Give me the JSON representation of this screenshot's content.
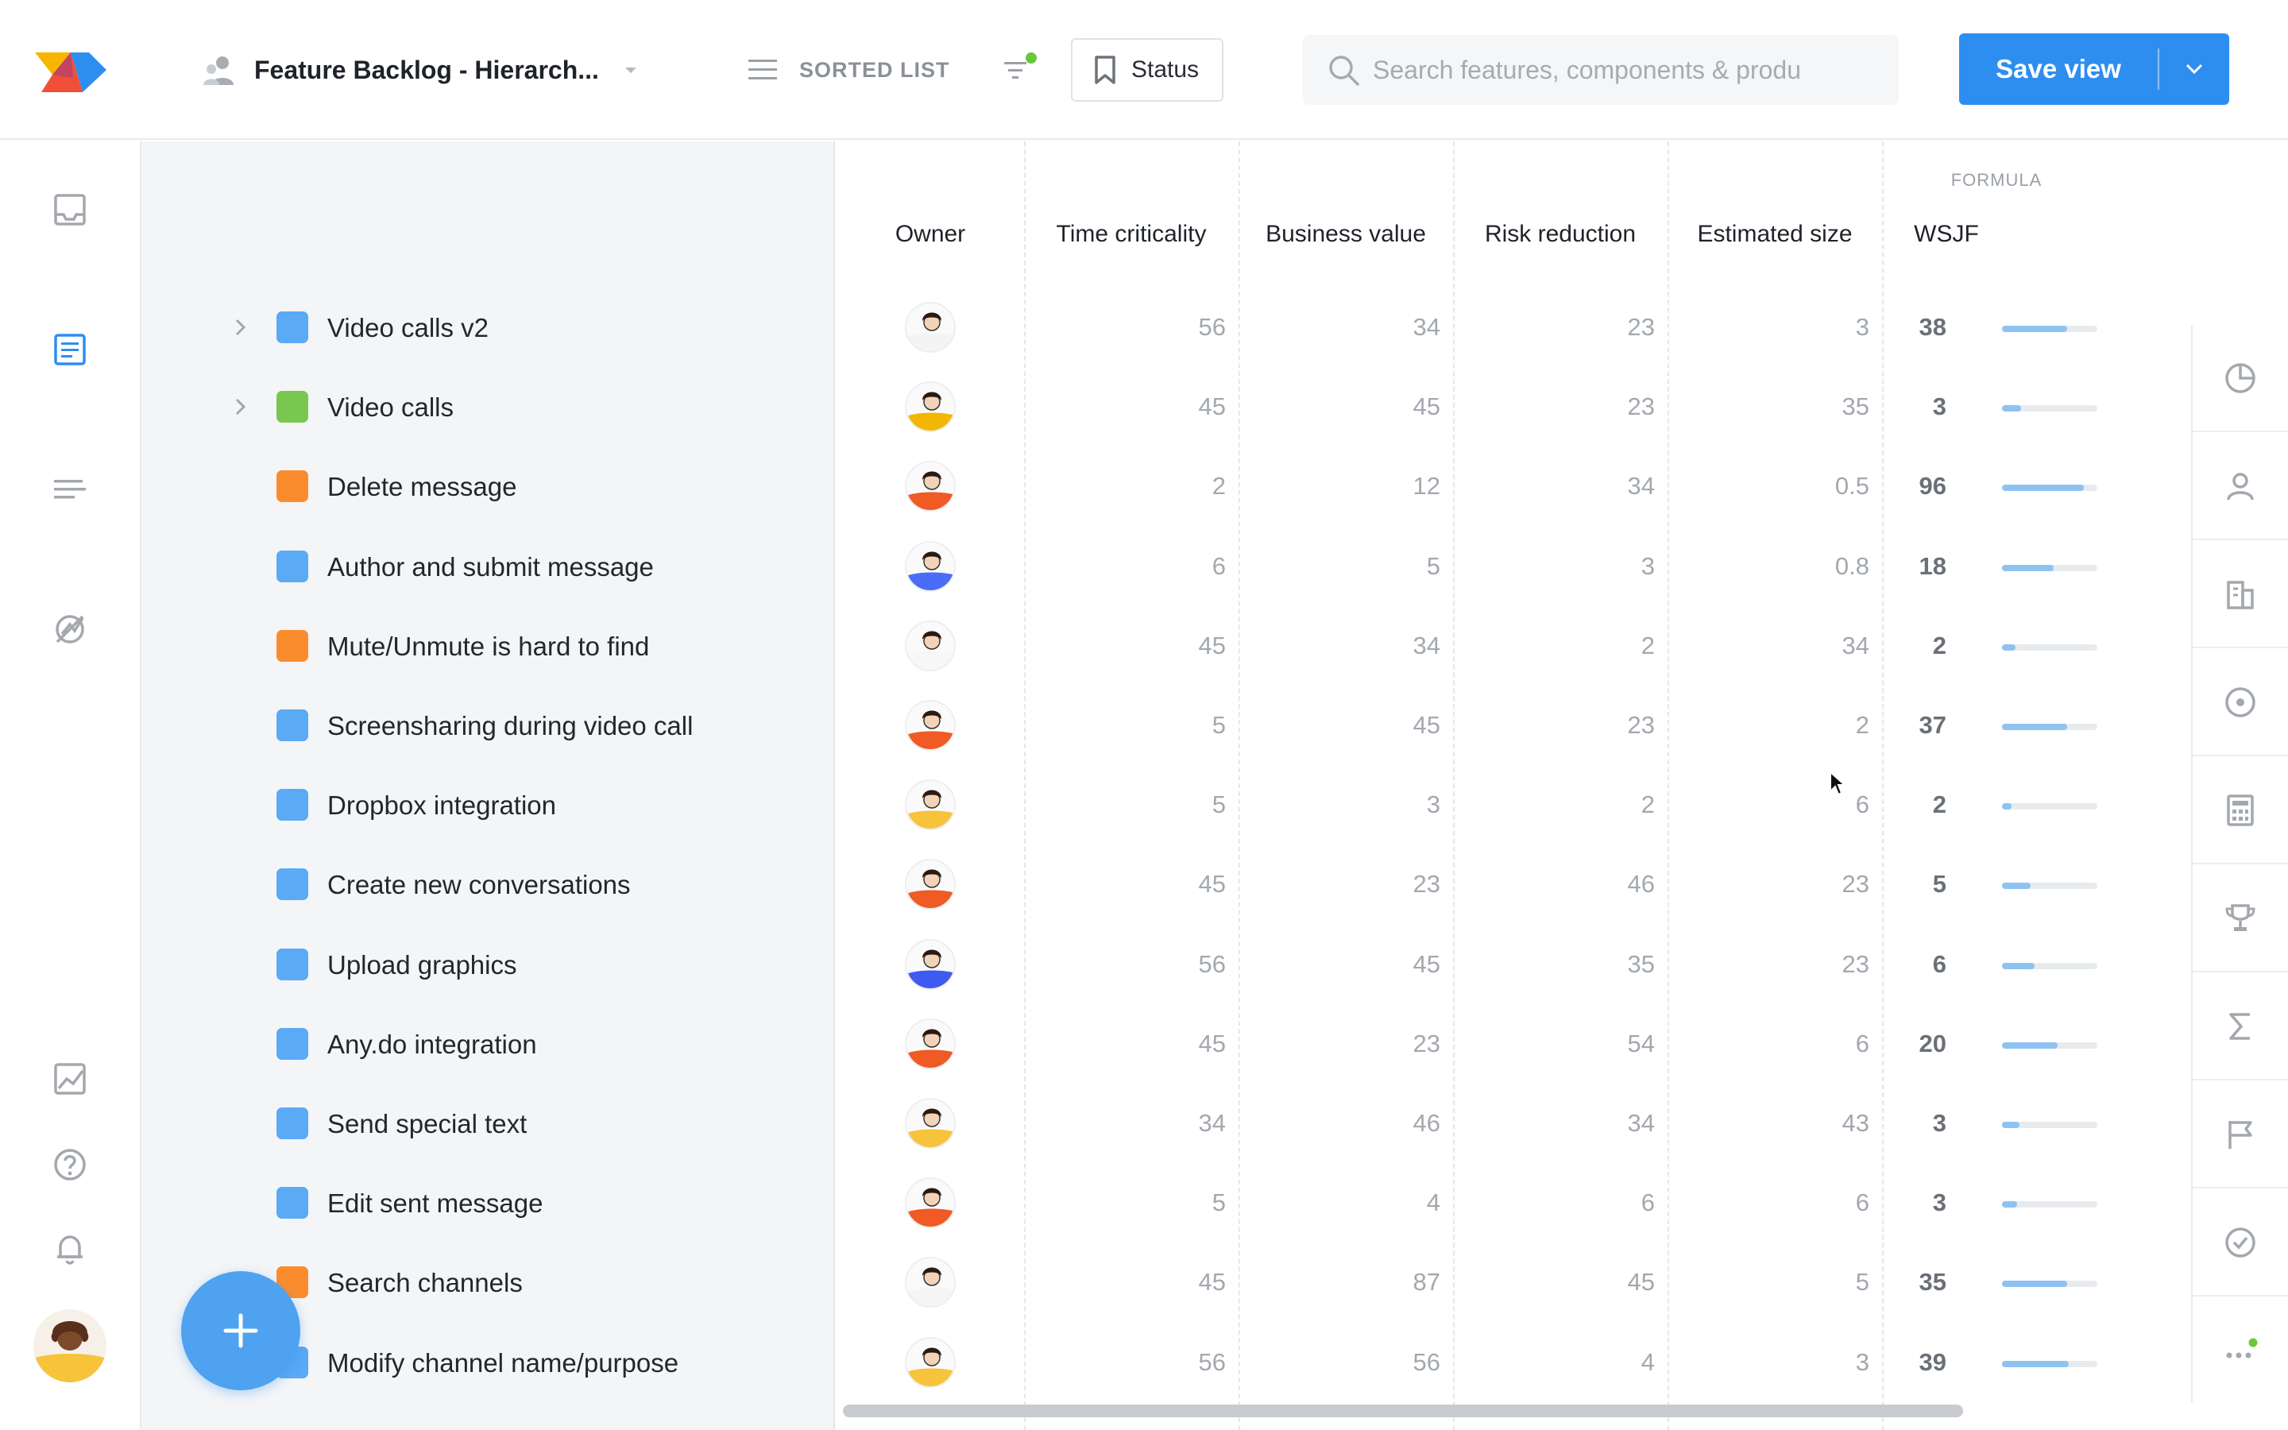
{
  "header": {
    "view_title": "Feature Backlog - Hierarch...",
    "sorted_list_label": "SORTED LIST",
    "status_label": "Status",
    "search_placeholder": "Search features, components & produ",
    "save_view_label": "Save view"
  },
  "colors": {
    "primary": "#2e8ef0",
    "blue_square": "#5aaaf5",
    "green_square": "#7ac74f",
    "orange_square": "#fb8c2e",
    "wsjf_bar": "#8ec2f2"
  },
  "left_nav": [
    "inbox-icon",
    "board-list-icon",
    "roadmap-icon",
    "insights-icon",
    "chart-icon",
    "help-icon",
    "notifications-icon"
  ],
  "table": {
    "formula_label": "FORMULA",
    "columns": [
      "Owner",
      "Time criticality",
      "Business value",
      "Risk reduction",
      "Estimated size",
      "WSJF"
    ]
  },
  "features": [
    {
      "name": "Video calls v2",
      "color": "blue",
      "expandable": true,
      "time_criticality": "56",
      "business_value": "34",
      "risk_reduction": "23",
      "estimated_size": "3",
      "wsjf": "38",
      "wsjf_fraction": 0.68
    },
    {
      "name": "Video calls",
      "color": "green",
      "expandable": true,
      "time_criticality": "45",
      "business_value": "45",
      "risk_reduction": "23",
      "estimated_size": "35",
      "wsjf": "3",
      "wsjf_fraction": 0.2
    },
    {
      "name": "Delete message",
      "color": "orange",
      "expandable": false,
      "time_criticality": "2",
      "business_value": "12",
      "risk_reduction": "34",
      "estimated_size": "0.5",
      "wsjf": "96",
      "wsjf_fraction": 0.86
    },
    {
      "name": "Author and submit message",
      "color": "blue",
      "expandable": false,
      "time_criticality": "6",
      "business_value": "5",
      "risk_reduction": "3",
      "estimated_size": "0.8",
      "wsjf": "18",
      "wsjf_fraction": 0.54
    },
    {
      "name": "Mute/Unmute is hard to find",
      "color": "orange",
      "expandable": false,
      "time_criticality": "45",
      "business_value": "34",
      "risk_reduction": "2",
      "estimated_size": "34",
      "wsjf": "2",
      "wsjf_fraction": 0.14
    },
    {
      "name": "Screensharing during video call",
      "color": "blue",
      "expandable": false,
      "time_criticality": "5",
      "business_value": "45",
      "risk_reduction": "23",
      "estimated_size": "2",
      "wsjf": "37",
      "wsjf_fraction": 0.68
    },
    {
      "name": "Dropbox integration",
      "color": "blue",
      "expandable": false,
      "time_criticality": "5",
      "business_value": "3",
      "risk_reduction": "2",
      "estimated_size": "6",
      "wsjf": "2",
      "wsjf_fraction": 0.1
    },
    {
      "name": "Create new conversations",
      "color": "blue",
      "expandable": false,
      "time_criticality": "45",
      "business_value": "23",
      "risk_reduction": "46",
      "estimated_size": "23",
      "wsjf": "5",
      "wsjf_fraction": 0.3
    },
    {
      "name": "Upload graphics",
      "color": "blue",
      "expandable": false,
      "time_criticality": "56",
      "business_value": "45",
      "risk_reduction": "35",
      "estimated_size": "23",
      "wsjf": "6",
      "wsjf_fraction": 0.34
    },
    {
      "name": "Any.do integration",
      "color": "blue",
      "expandable": false,
      "time_criticality": "45",
      "business_value": "23",
      "risk_reduction": "54",
      "estimated_size": "6",
      "wsjf": "20",
      "wsjf_fraction": 0.58
    },
    {
      "name": "Send special text",
      "color": "blue",
      "expandable": false,
      "time_criticality": "34",
      "business_value": "46",
      "risk_reduction": "34",
      "estimated_size": "43",
      "wsjf": "3",
      "wsjf_fraction": 0.18
    },
    {
      "name": "Edit sent message",
      "color": "blue",
      "expandable": false,
      "time_criticality": "5",
      "business_value": "4",
      "risk_reduction": "6",
      "estimated_size": "6",
      "wsjf": "3",
      "wsjf_fraction": 0.16
    },
    {
      "name": "Search channels",
      "color": "orange",
      "expandable": false,
      "time_criticality": "45",
      "business_value": "87",
      "risk_reduction": "45",
      "estimated_size": "5",
      "wsjf": "35",
      "wsjf_fraction": 0.68
    },
    {
      "name": "Modify channel name/purpose",
      "color": "blue",
      "expandable": false,
      "time_criticality": "56",
      "business_value": "56",
      "risk_reduction": "4",
      "estimated_size": "3",
      "wsjf": "39",
      "wsjf_fraction": 0.7
    }
  ],
  "owner_avatar_colors": [
    "#f4f4f4",
    "#f2b705",
    "#f05a24",
    "#4a6cf7",
    "#f7f7f7",
    "#f05a24",
    "#f6c33b",
    "#f05a24",
    "#3d5af1",
    "#f05a24",
    "#f6c33b",
    "#f05a24",
    "#f5f5f5",
    "#f6c33b"
  ],
  "right_rail": [
    "pie-chart-icon",
    "person-icon",
    "building-icon",
    "target-icon",
    "calculator-icon",
    "trophy-icon",
    "sigma-icon",
    "flag-icon",
    "check-circle-icon",
    "more-icon"
  ]
}
